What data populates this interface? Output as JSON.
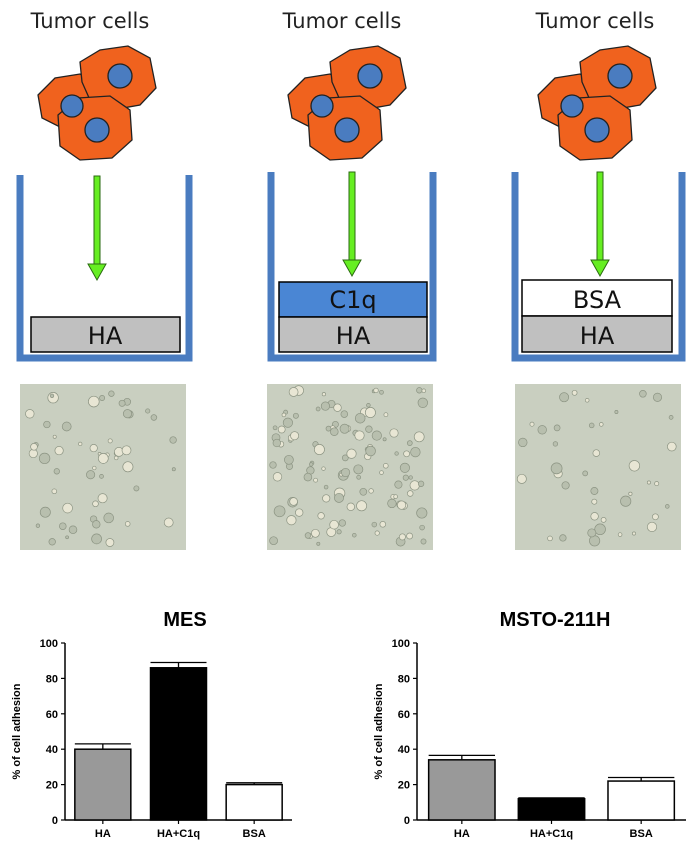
{
  "panels": [
    {
      "title": "Tumor cells",
      "layers": [
        "HA"
      ]
    },
    {
      "title": "Tumor cells",
      "layers": [
        "HA",
        "C1q"
      ]
    },
    {
      "title": "Tumor cells",
      "layers": [
        "HA",
        "BSA"
      ]
    }
  ],
  "colors": {
    "cell_body": "#f0621e",
    "cell_nucleus": "#4a7cc0",
    "well_wall": "#4a7cc0",
    "arrow": "#66ee22",
    "layer_HA": "#c0c0c0",
    "layer_C1q": "#4a86d4",
    "layer_BSA": "#ffffff",
    "micrograph_bg": "#c9cfc0"
  },
  "chart_data": [
    {
      "type": "bar",
      "title": "MES",
      "categories": [
        "HA",
        "HA+C1q",
        "BSA"
      ],
      "values": [
        40,
        86,
        20
      ],
      "errors": [
        3,
        3,
        1
      ],
      "bar_colors": [
        "#999999",
        "#000000",
        "#ffffff"
      ],
      "ylabel": "% of cell adhesion",
      "xlabel": "",
      "ylim": [
        0,
        100
      ],
      "yticks": [
        0,
        20,
        40,
        60,
        80,
        100
      ],
      "grid": false
    },
    {
      "type": "bar",
      "title": "MSTO-211H",
      "categories": [
        "HA",
        "HA+C1q",
        "BSA"
      ],
      "values": [
        34,
        12,
        22
      ],
      "errors": [
        2.5,
        0.5,
        2
      ],
      "bar_colors": [
        "#999999",
        "#000000",
        "#ffffff"
      ],
      "ylabel": "% of cell adhesion",
      "xlabel": "",
      "ylim": [
        0,
        100
      ],
      "yticks": [
        0,
        20,
        40,
        60,
        80,
        100
      ],
      "grid": false
    }
  ]
}
